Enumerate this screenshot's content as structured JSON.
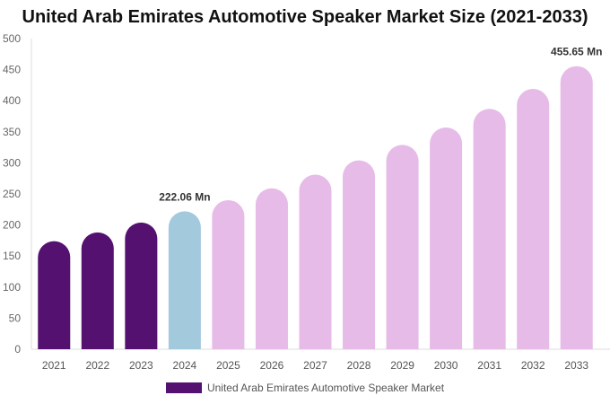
{
  "chart_data": {
    "type": "bar",
    "title": "United Arab Emirates Automotive Speaker Market Size (2021-2033)",
    "categories": [
      "2021",
      "2022",
      "2023",
      "2024",
      "2025",
      "2026",
      "2027",
      "2028",
      "2029",
      "2030",
      "2031",
      "2032",
      "2033"
    ],
    "series": [
      {
        "name": "United Arab Emirates Automotive Speaker Market",
        "values": [
          174,
          188,
          204,
          222.06,
          240,
          259,
          281,
          304,
          329,
          357,
          387,
          419,
          455.65
        ]
      }
    ],
    "data_labels": {
      "3": "222.06 Mn",
      "12": "455.65 Mn"
    },
    "ylim": [
      0,
      500
    ],
    "yticks": [
      0,
      50,
      100,
      150,
      200,
      250,
      300,
      350,
      400,
      450,
      500
    ],
    "grid": false,
    "legend": "bottom",
    "colors": {
      "historical": "#541170",
      "base_year": "#a3c9dd",
      "forecast": "#e6bbe8"
    }
  }
}
